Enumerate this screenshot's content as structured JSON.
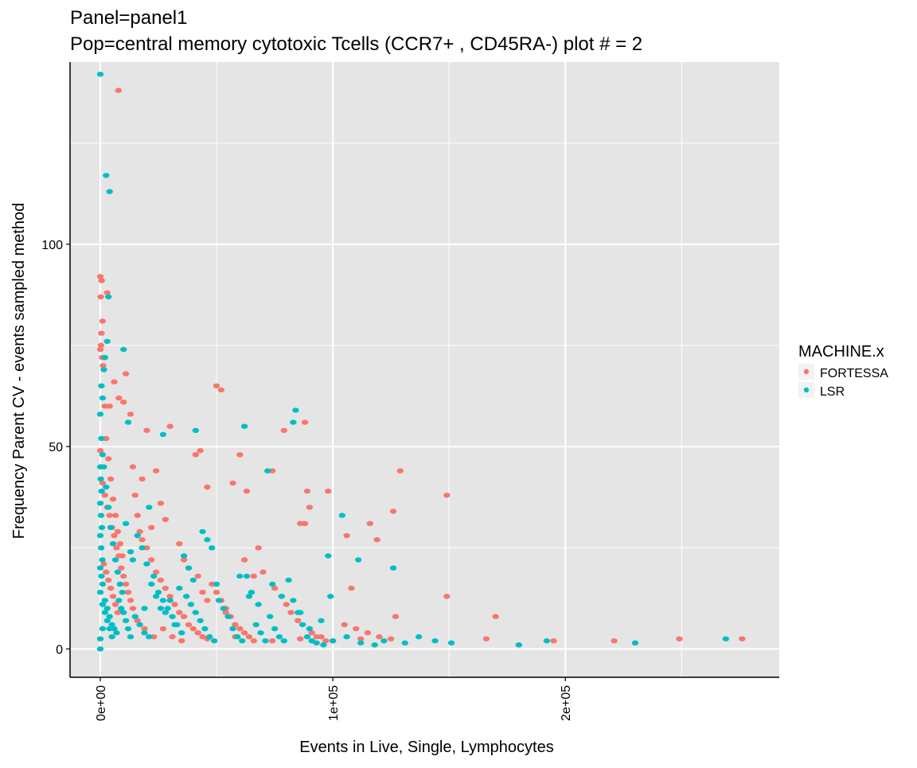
{
  "chart_data": {
    "type": "scatter",
    "title": "Panel=panel1",
    "subtitle": "Pop=central memory cytotoxic Tcells (CCR7+ , CD45RA-) plot # = 2",
    "xlabel": "Events in Live, Single, Lymphocytes",
    "ylabel": "Frequency Parent CV - events sampled method",
    "xlim": [
      -13000,
      292000
    ],
    "ylim": [
      -7,
      145
    ],
    "x_ticks": [
      0,
      100000,
      200000
    ],
    "x_tick_labels": [
      "0e+00",
      "1e+05",
      "2e+05"
    ],
    "y_ticks": [
      0,
      50,
      100
    ],
    "y_tick_labels": [
      "0",
      "50",
      "100"
    ],
    "grid": true,
    "legend": {
      "title": "MACHINE.x",
      "position": "right",
      "entries": [
        "FORTESSA",
        "LSR"
      ]
    },
    "colors": {
      "FORTESSA": "#F8766D",
      "LSR": "#00BFC4",
      "panel_bg": "#E5E5E5",
      "grid": "#FFFFFF"
    },
    "series": [
      {
        "name": "FORTESSA",
        "points": [
          [
            7800,
            138
          ],
          [
            0,
            92
          ],
          [
            600,
            91
          ],
          [
            200,
            87
          ],
          [
            3000,
            88
          ],
          [
            1000,
            81
          ],
          [
            500,
            78
          ],
          [
            300,
            75
          ],
          [
            0,
            74
          ],
          [
            800,
            72
          ],
          [
            1200,
            70
          ],
          [
            6000,
            66
          ],
          [
            11000,
            68
          ],
          [
            8000,
            62
          ],
          [
            2000,
            60
          ],
          [
            4000,
            60
          ],
          [
            10000,
            61
          ],
          [
            13000,
            58
          ],
          [
            20000,
            54
          ],
          [
            30000,
            55
          ],
          [
            41000,
            48
          ],
          [
            43000,
            49
          ],
          [
            50000,
            65
          ],
          [
            52000,
            64
          ],
          [
            46000,
            40
          ],
          [
            57000,
            41
          ],
          [
            60000,
            48
          ],
          [
            63000,
            39
          ],
          [
            72000,
            44
          ],
          [
            74000,
            44
          ],
          [
            79000,
            54
          ],
          [
            88000,
            56
          ],
          [
            89000,
            39
          ],
          [
            90000,
            35
          ],
          [
            98000,
            39
          ],
          [
            88000,
            31
          ],
          [
            86000,
            31
          ],
          [
            106000,
            28
          ],
          [
            116000,
            31
          ],
          [
            119000,
            27
          ],
          [
            126000,
            34
          ],
          [
            129000,
            44
          ],
          [
            149000,
            38
          ],
          [
            127000,
            8
          ],
          [
            149000,
            13
          ],
          [
            170000,
            8
          ],
          [
            166000,
            2.5
          ],
          [
            180000,
            1
          ],
          [
            195000,
            2
          ],
          [
            221000,
            2
          ],
          [
            249000,
            2.5
          ],
          [
            276000,
            2.5
          ],
          [
            0,
            49
          ],
          [
            500,
            45
          ],
          [
            1000,
            41
          ],
          [
            2000,
            38
          ],
          [
            3000,
            35
          ],
          [
            4000,
            33
          ],
          [
            5000,
            30
          ],
          [
            6000,
            28
          ],
          [
            7000,
            25
          ],
          [
            8000,
            23
          ],
          [
            9000,
            20
          ],
          [
            10000,
            18
          ],
          [
            11000,
            16
          ],
          [
            12000,
            14
          ],
          [
            13000,
            12
          ],
          [
            14000,
            10
          ],
          [
            16000,
            33
          ],
          [
            17000,
            29
          ],
          [
            18000,
            27
          ],
          [
            20000,
            25
          ],
          [
            22000,
            22
          ],
          [
            24000,
            19
          ],
          [
            26000,
            17
          ],
          [
            28000,
            15
          ],
          [
            30000,
            13
          ],
          [
            32000,
            11
          ],
          [
            34000,
            9
          ],
          [
            36000,
            8
          ],
          [
            38000,
            6
          ],
          [
            40000,
            5
          ],
          [
            42000,
            4
          ],
          [
            44000,
            3
          ],
          [
            46000,
            2.5
          ],
          [
            48000,
            16
          ],
          [
            50000,
            14
          ],
          [
            52000,
            12
          ],
          [
            54000,
            10
          ],
          [
            56000,
            8
          ],
          [
            58000,
            6
          ],
          [
            60000,
            5
          ],
          [
            62000,
            4
          ],
          [
            64000,
            3
          ],
          [
            66000,
            2
          ],
          [
            70000,
            19
          ],
          [
            75000,
            15
          ],
          [
            80000,
            11
          ],
          [
            85000,
            7
          ],
          [
            90000,
            5
          ],
          [
            95000,
            3
          ],
          [
            100000,
            2
          ],
          [
            105000,
            6
          ],
          [
            110000,
            5
          ],
          [
            115000,
            4
          ],
          [
            120000,
            3
          ],
          [
            2500,
            52
          ],
          [
            3500,
            47
          ],
          [
            4500,
            42
          ],
          [
            5500,
            37
          ],
          [
            6500,
            33
          ],
          [
            7500,
            29
          ],
          [
            8500,
            26
          ],
          [
            9500,
            23
          ],
          [
            1500,
            21
          ],
          [
            2500,
            19
          ],
          [
            3500,
            17
          ],
          [
            4500,
            15
          ],
          [
            5500,
            13
          ],
          [
            6500,
            11
          ],
          [
            7500,
            9
          ],
          [
            24000,
            44
          ],
          [
            26000,
            36
          ],
          [
            28000,
            32
          ],
          [
            34000,
            26
          ],
          [
            36000,
            22
          ],
          [
            38000,
            20
          ],
          [
            42000,
            18
          ],
          [
            44000,
            14
          ],
          [
            46000,
            12
          ],
          [
            62000,
            22
          ],
          [
            66000,
            18
          ],
          [
            68000,
            25
          ],
          [
            78000,
            13
          ],
          [
            82000,
            9
          ],
          [
            91000,
            4
          ],
          [
            97000,
            2
          ],
          [
            108000,
            15
          ],
          [
            112000,
            2.5
          ],
          [
            125000,
            2.5
          ],
          [
            14000,
            45
          ],
          [
            15000,
            38
          ],
          [
            18000,
            42
          ],
          [
            22000,
            30
          ],
          [
            16000,
            7
          ],
          [
            19000,
            5
          ],
          [
            23000,
            3
          ],
          [
            27000,
            5
          ],
          [
            31000,
            3
          ],
          [
            35000,
            2
          ],
          [
            54000,
            9
          ],
          [
            58000,
            3
          ],
          [
            74000,
            2
          ],
          [
            86000,
            2.5
          ],
          [
            93000,
            3
          ]
        ]
      },
      {
        "name": "LSR",
        "points": [
          [
            0,
            142
          ],
          [
            2500,
            117
          ],
          [
            4000,
            113
          ],
          [
            3500,
            87
          ],
          [
            2000,
            72
          ],
          [
            1500,
            69
          ],
          [
            10000,
            74
          ],
          [
            3000,
            76
          ],
          [
            500,
            65
          ],
          [
            1000,
            62
          ],
          [
            0,
            58
          ],
          [
            12000,
            56
          ],
          [
            27000,
            53
          ],
          [
            41000,
            54
          ],
          [
            62000,
            55
          ],
          [
            84000,
            59
          ],
          [
            83000,
            56
          ],
          [
            72000,
            44
          ],
          [
            104000,
            33
          ],
          [
            98000,
            23
          ],
          [
            111000,
            22
          ],
          [
            126000,
            20
          ],
          [
            99000,
            13
          ],
          [
            0,
            0
          ],
          [
            0,
            2.5
          ],
          [
            1000,
            5
          ],
          [
            500,
            52
          ],
          [
            1000,
            48
          ],
          [
            0,
            45
          ],
          [
            200,
            42
          ],
          [
            600,
            39
          ],
          [
            0,
            36
          ],
          [
            300,
            33
          ],
          [
            700,
            30
          ],
          [
            0,
            28
          ],
          [
            400,
            25
          ],
          [
            900,
            22
          ],
          [
            0,
            20
          ],
          [
            500,
            18
          ],
          [
            1000,
            16
          ],
          [
            0,
            14
          ],
          [
            2000,
            12
          ],
          [
            3000,
            10
          ],
          [
            4000,
            8
          ],
          [
            5000,
            6
          ],
          [
            6000,
            5
          ],
          [
            7000,
            4
          ],
          [
            8000,
            12
          ],
          [
            9000,
            10
          ],
          [
            10000,
            9
          ],
          [
            11000,
            7
          ],
          [
            12000,
            5
          ],
          [
            13000,
            3
          ],
          [
            15000,
            8
          ],
          [
            17000,
            6
          ],
          [
            19000,
            4
          ],
          [
            21000,
            3
          ],
          [
            23000,
            18
          ],
          [
            25000,
            14
          ],
          [
            27000,
            12
          ],
          [
            29000,
            10
          ],
          [
            31000,
            8
          ],
          [
            33000,
            6
          ],
          [
            35000,
            4
          ],
          [
            37000,
            13
          ],
          [
            39000,
            11
          ],
          [
            41000,
            9
          ],
          [
            43000,
            7
          ],
          [
            45000,
            5
          ],
          [
            47000,
            3
          ],
          [
            49000,
            2
          ],
          [
            51000,
            12
          ],
          [
            53000,
            10
          ],
          [
            55000,
            8
          ],
          [
            57000,
            5
          ],
          [
            59000,
            3
          ],
          [
            61000,
            2
          ],
          [
            63000,
            18
          ],
          [
            65000,
            14
          ],
          [
            67000,
            6
          ],
          [
            69000,
            4
          ],
          [
            71000,
            2
          ],
          [
            73000,
            8
          ],
          [
            75000,
            5
          ],
          [
            77000,
            3
          ],
          [
            79000,
            2
          ],
          [
            81000,
            17
          ],
          [
            83000,
            12
          ],
          [
            85000,
            9
          ],
          [
            87000,
            6
          ],
          [
            89000,
            3
          ],
          [
            91000,
            2
          ],
          [
            93000,
            1.5
          ],
          [
            96000,
            1
          ],
          [
            100000,
            2
          ],
          [
            106000,
            3
          ],
          [
            112000,
            1.5
          ],
          [
            118000,
            1
          ],
          [
            122000,
            2
          ],
          [
            131000,
            1.5
          ],
          [
            137000,
            3
          ],
          [
            144000,
            2
          ],
          [
            151000,
            1.5
          ],
          [
            180000,
            1
          ],
          [
            192000,
            2
          ],
          [
            230000,
            1.5
          ],
          [
            269000,
            2.5
          ],
          [
            1500,
            45
          ],
          [
            2500,
            40
          ],
          [
            3500,
            35
          ],
          [
            4500,
            30
          ],
          [
            5500,
            26
          ],
          [
            6500,
            22
          ],
          [
            7500,
            19
          ],
          [
            8500,
            16
          ],
          [
            9500,
            14
          ],
          [
            1000,
            11
          ],
          [
            2000,
            9
          ],
          [
            3000,
            7
          ],
          [
            4000,
            5
          ],
          [
            5000,
            3
          ],
          [
            14000,
            22
          ],
          [
            16000,
            28
          ],
          [
            18000,
            25
          ],
          [
            20000,
            21
          ],
          [
            22000,
            16
          ],
          [
            24000,
            13
          ],
          [
            26000,
            10
          ],
          [
            28000,
            9
          ],
          [
            30000,
            12
          ],
          [
            32000,
            6
          ],
          [
            34000,
            15
          ],
          [
            36000,
            23
          ],
          [
            38000,
            20
          ],
          [
            40000,
            17
          ],
          [
            44000,
            29
          ],
          [
            46000,
            27
          ],
          [
            48000,
            25
          ],
          [
            50000,
            16
          ],
          [
            60000,
            18
          ],
          [
            64000,
            13
          ],
          [
            68000,
            11
          ],
          [
            74000,
            16
          ],
          [
            78000,
            13
          ],
          [
            86000,
            9
          ],
          [
            90000,
            5
          ],
          [
            95000,
            7
          ],
          [
            19000,
            10
          ],
          [
            21000,
            35
          ],
          [
            11000,
            31
          ],
          [
            13000,
            24
          ]
        ]
      }
    ]
  }
}
